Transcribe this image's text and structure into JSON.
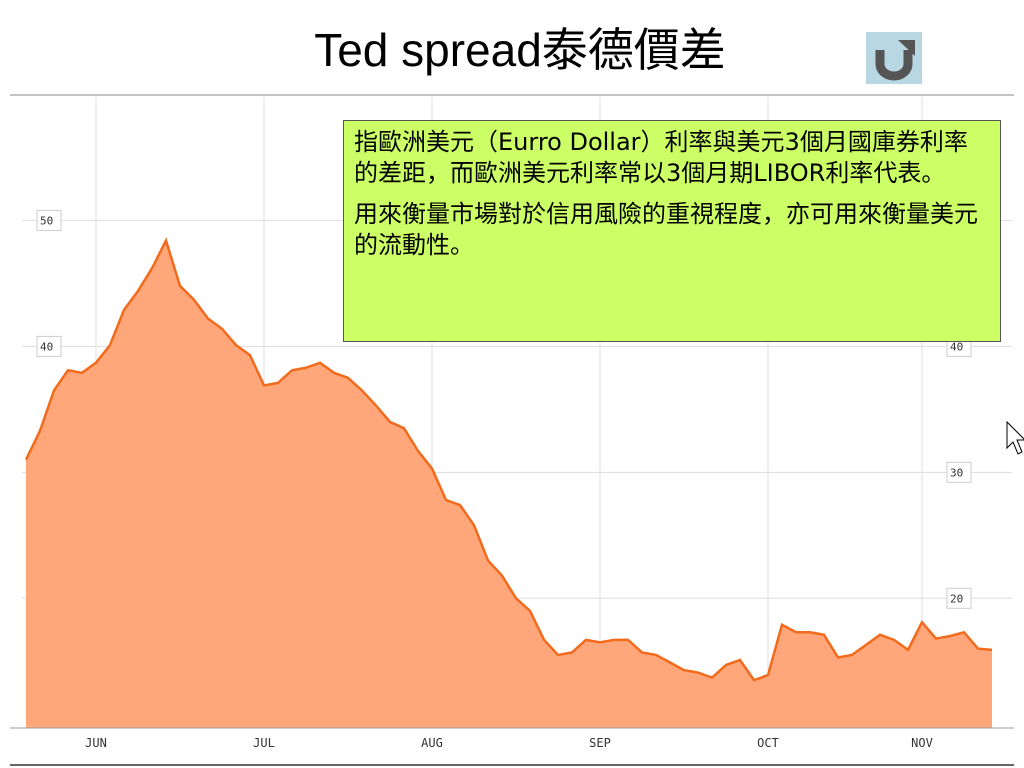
{
  "title": "Ted spread泰德價差",
  "callout": {
    "paragraphs": [
      "指歐洲美元（Eurro Dollar）利率與美元3個月國庫券利率的差距，而歐洲美元利率常以3個月期LIBOR利率代表。",
      "用來衡量市場對於信用風險的重視程度，亦可用來衡量美元的流動性。"
    ]
  },
  "chart_data": {
    "type": "area",
    "color": "#ffa77a",
    "line_color": "#f26a1b",
    "categories": [
      null,
      null,
      null,
      null,
      null,
      "JUN",
      null,
      null,
      null,
      null,
      null,
      null,
      null,
      null,
      null,
      null,
      null,
      "JUL",
      null,
      null,
      null,
      null,
      null,
      null,
      null,
      null,
      null,
      null,
      null,
      "AUG",
      null,
      null,
      null,
      null,
      null,
      null,
      null,
      null,
      null,
      null,
      null,
      "SEP",
      null,
      null,
      null,
      null,
      null,
      null,
      null,
      null,
      null,
      null,
      null,
      "OCT",
      null,
      null,
      null,
      null,
      null,
      null,
      null,
      null,
      null,
      null,
      "NOV",
      null,
      null,
      null,
      null,
      null
    ],
    "values": [
      31.0,
      33.3,
      36.5,
      38.1,
      37.9,
      38.7,
      40.1,
      42.9,
      44.4,
      46.2,
      48.4,
      44.8,
      43.7,
      42.2,
      41.4,
      40.1,
      39.3,
      36.9,
      37.1,
      38.1,
      38.3,
      38.7,
      37.9,
      37.5,
      36.5,
      35.3,
      34.0,
      33.5,
      31.7,
      30.3,
      27.8,
      27.4,
      25.8,
      23.0,
      21.8,
      20.0,
      19.0,
      16.7,
      15.5,
      15.7,
      16.7,
      16.5,
      16.7,
      16.7,
      15.7,
      15.5,
      14.9,
      14.3,
      14.1,
      13.7,
      14.7,
      15.1,
      13.5,
      13.9,
      17.9,
      17.3,
      17.3,
      17.1,
      15.3,
      15.5,
      16.3,
      17.1,
      16.7,
      15.9,
      18.1,
      16.8,
      17.0,
      17.3,
      16.0,
      15.9
    ],
    "ylim": [
      9.7,
      59.8
    ],
    "yticks": [
      20,
      30,
      40,
      50
    ],
    "grid": true
  }
}
